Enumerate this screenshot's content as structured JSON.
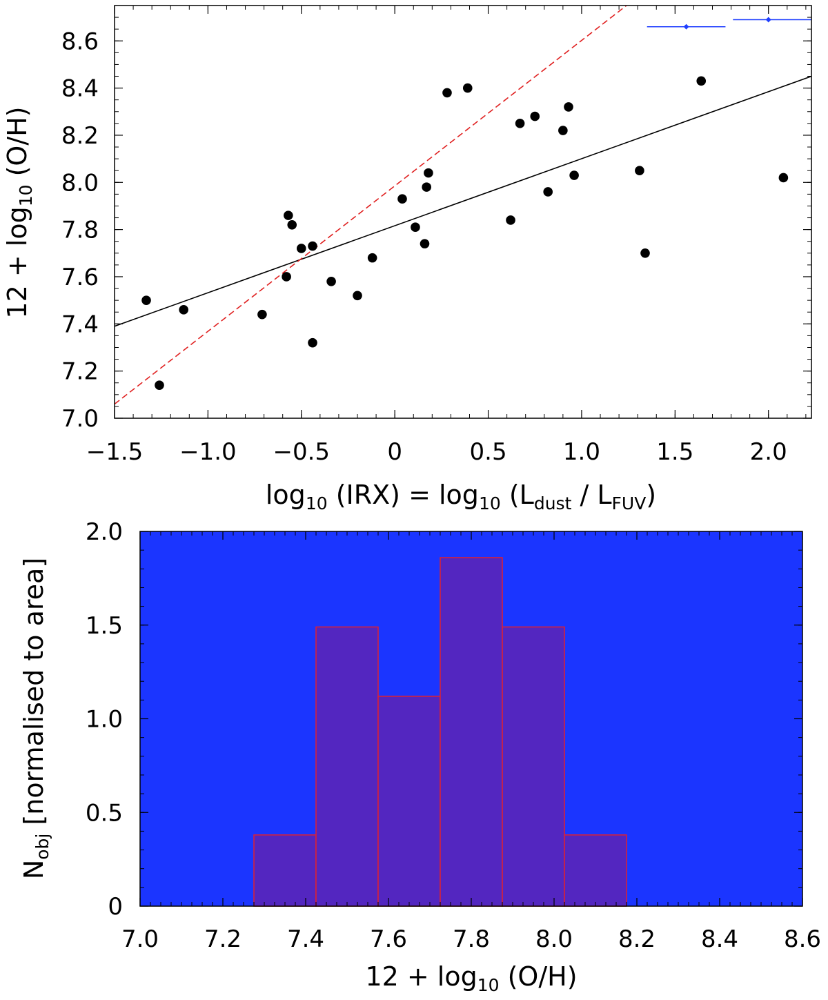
{
  "chart_data": [
    {
      "type": "scatter",
      "xlabel": "log10 (IRX) = log10 (Ldust / LFUV)",
      "xlabel_parts": {
        "pre": "log",
        "sub1": "10",
        "mid": " (IRX) = log",
        "sub2": "10",
        "mid2": " (L",
        "sub3": "dust",
        "mid3": " / L",
        "sub4": "FUV",
        "post": ")"
      },
      "ylabel": "12 + log10 (O/H)",
      "ylabel_parts": {
        "pre": "12 + log",
        "sub": "10",
        "post": " (O/H)"
      },
      "xlim": [
        -1.5,
        2.23
      ],
      "ylim": [
        7.0,
        8.75
      ],
      "xticks": [
        -1.5,
        -1.0,
        -0.5,
        0,
        0.5,
        1.0,
        1.5,
        2.0
      ],
      "xtick_labels": [
        "−1.5",
        "−1.0",
        "−0.5",
        "0",
        "0.5",
        "1.0",
        "1.5",
        "2.0"
      ],
      "yticks": [
        7.0,
        7.2,
        7.4,
        7.6,
        7.8,
        8.0,
        8.2,
        8.4,
        8.6
      ],
      "ytick_labels": [
        "7.0",
        "7.2",
        "7.4",
        "7.6",
        "7.8",
        "8.0",
        "8.2",
        "8.4",
        "8.6"
      ],
      "grid": false,
      "points": {
        "x": [
          -1.33,
          -1.26,
          -1.13,
          -0.71,
          -0.58,
          -0.57,
          -0.55,
          -0.5,
          -0.44,
          -0.44,
          -0.34,
          -0.2,
          -0.12,
          0.04,
          0.11,
          0.16,
          0.17,
          0.18,
          0.28,
          0.39,
          0.62,
          0.67,
          0.75,
          0.82,
          0.9,
          0.93,
          0.96,
          1.31,
          1.34,
          1.64,
          2.08
        ],
        "y": [
          7.5,
          7.14,
          7.46,
          7.44,
          7.6,
          7.86,
          7.82,
          7.72,
          7.73,
          7.32,
          7.58,
          7.52,
          7.68,
          7.93,
          7.81,
          7.74,
          7.98,
          8.04,
          8.38,
          8.4,
          7.84,
          8.25,
          8.28,
          7.96,
          8.22,
          8.32,
          8.03,
          8.05,
          7.7,
          8.43,
          8.02
        ],
        "color": "#000000"
      },
      "lines": [
        {
          "style": "solid",
          "color": "#000000",
          "x": [
            -1.5,
            2.23
          ],
          "y": [
            7.39,
            8.45
          ]
        },
        {
          "style": "dashed",
          "color": "#e02020",
          "x": [
            -1.5,
            1.24
          ],
          "y": [
            7.06,
            8.75
          ]
        }
      ],
      "error_bars": [
        {
          "x": 1.56,
          "xmin": 1.35,
          "xmax": 1.77,
          "y": 8.66,
          "color": "#1f3fff"
        },
        {
          "x": 2.0,
          "xmin": 1.81,
          "xmax": 2.23,
          "y": 8.69,
          "color": "#1f3fff"
        }
      ]
    },
    {
      "type": "bar",
      "xlabel": "12 + log10 (O/H)",
      "xlabel_parts": {
        "pre": "12 + log",
        "sub": "10",
        "post": " (O/H)"
      },
      "ylabel": "Nobj [normalised to area]",
      "ylabel_parts": {
        "pre": "N",
        "sub": "obj",
        "post": " [normalised to area]"
      },
      "xlim": [
        7.0,
        8.6
      ],
      "ylim": [
        0,
        2.0
      ],
      "xticks": [
        7.0,
        7.2,
        7.4,
        7.6,
        7.8,
        8.0,
        8.2,
        8.4,
        8.6
      ],
      "xtick_labels": [
        "7.0",
        "7.2",
        "7.4",
        "7.6",
        "7.8",
        "8.0",
        "8.2",
        "8.4",
        "8.6"
      ],
      "yticks": [
        0,
        0.5,
        1.0,
        1.5,
        2.0
      ],
      "ytick_labels": [
        "0",
        "0.5",
        "1.0",
        "1.5",
        "2.0"
      ],
      "background_color": "#1b35ff",
      "bar_fill": "#5326c0",
      "bar_edge": "#e02030",
      "bins": [
        {
          "x0": 7.275,
          "x1": 7.425,
          "value": 0.38
        },
        {
          "x0": 7.425,
          "x1": 7.575,
          "value": 1.49
        },
        {
          "x0": 7.575,
          "x1": 7.725,
          "value": 1.12
        },
        {
          "x0": 7.725,
          "x1": 7.875,
          "value": 1.86
        },
        {
          "x0": 7.875,
          "x1": 8.025,
          "value": 1.49
        },
        {
          "x0": 8.025,
          "x1": 8.175,
          "value": 0.38
        }
      ]
    }
  ]
}
